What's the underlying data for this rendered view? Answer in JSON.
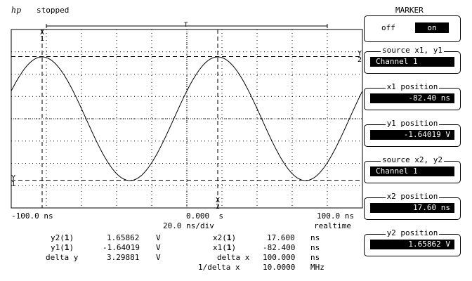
{
  "header": {
    "logo": "hp",
    "status": "stopped"
  },
  "screen": {
    "x_left": "-100.0 ns",
    "x_center": "0.000  s",
    "x_right": "100.0 ns",
    "timebase": "20.0 ns/div",
    "mode": "realtime",
    "marker_x1": "X",
    "marker_x1_sub": "1",
    "marker_x2": "X",
    "marker_x2_sub": "2",
    "marker_y1": "Y",
    "marker_y1_sub": "1",
    "marker_y2": "Y",
    "marker_y2_sub": "2",
    "trigger_symbol": "T"
  },
  "measurements": {
    "left": [
      {
        "label": "y2(",
        "ch": "1",
        "close": ")",
        "value": "1.65862",
        "unit": "V"
      },
      {
        "label": "y1(",
        "ch": "1",
        "close": ")",
        "value": "-1.64019",
        "unit": "V"
      },
      {
        "label": "delta y",
        "ch": "",
        "close": "",
        "value": "3.29881",
        "unit": "V"
      }
    ],
    "right": [
      {
        "label": "x2(",
        "ch": "1",
        "close": ")",
        "value": "17.600",
        "unit": "ns"
      },
      {
        "label": "x1(",
        "ch": "1",
        "close": ")",
        "value": "-82.400",
        "unit": "ns"
      },
      {
        "label": "delta x",
        "ch": "",
        "close": "",
        "value": "100.000",
        "unit": "ns"
      },
      {
        "label": "1/delta x",
        "ch": "",
        "close": "",
        "value": "10.0000",
        "unit": "MHz"
      }
    ]
  },
  "sidebar": {
    "menu_title": "MARKER",
    "toggle": {
      "off_label": "off",
      "on_label": "on"
    },
    "source1": {
      "title": "source x1, y1",
      "value": "Channel 1"
    },
    "x1_position": {
      "title": "x1 position",
      "value": "-82.40 ns"
    },
    "y1_position": {
      "title": "y1 position",
      "value": "-1.64019  V"
    },
    "source2": {
      "title": "source x2, y2",
      "value": "Channel 1"
    },
    "x2_position": {
      "title": "x2 position",
      "value": "17.60 ns"
    },
    "y2_position": {
      "title": "y2 position",
      "value": "1.65862  V"
    }
  },
  "chart_data": {
    "type": "line",
    "xlim": [
      -100,
      100
    ],
    "x_unit": "ns",
    "xlabel": "",
    "ylabel": "",
    "grid": true,
    "series": [
      {
        "frequency_mhz": 10,
        "amplitude_v": 1.65,
        "phase_peak_ns": -82.4
      }
    ],
    "markers": {
      "x1": -82.4,
      "x2": 17.6,
      "y1": -1.64019,
      "y2": 1.65862
    }
  }
}
